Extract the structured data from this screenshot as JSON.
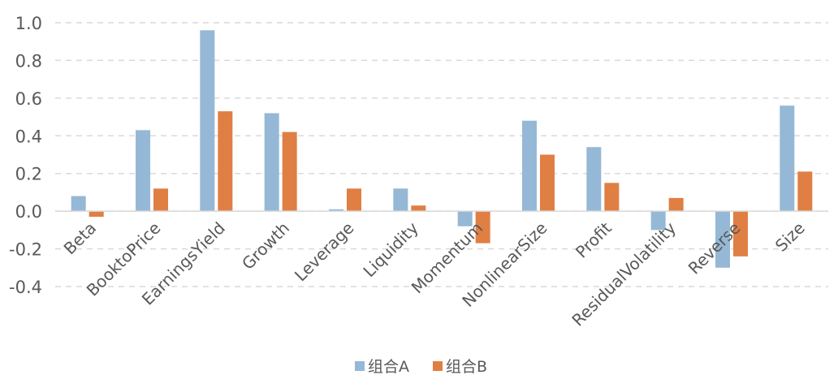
{
  "chart_data": {
    "type": "bar",
    "title": "",
    "xlabel": "",
    "ylabel": "",
    "categories": [
      "Beta",
      "BooktoPrice",
      "EarningsYield",
      "Growth",
      "Leverage",
      "Liquidity",
      "Momentum",
      "NonlinearSize",
      "Profit",
      "ResidualVolatility",
      "Reverse",
      "Size"
    ],
    "series": [
      {
        "name": "组合A",
        "color": "#95b8d6",
        "values": [
          0.08,
          0.43,
          0.96,
          0.52,
          0.01,
          0.12,
          -0.08,
          0.48,
          0.34,
          -0.1,
          -0.3,
          0.56
        ]
      },
      {
        "name": "组合B",
        "color": "#e07f44",
        "values": [
          -0.03,
          0.12,
          0.53,
          0.42,
          0.12,
          0.03,
          -0.17,
          0.3,
          0.15,
          0.07,
          -0.24,
          0.21
        ]
      }
    ],
    "ylim": [
      -0.4,
      1.0
    ],
    "yticks": [
      "-0.4",
      "-0.2",
      "0.0",
      "0.2",
      "0.4",
      "0.6",
      "0.8",
      "1.0"
    ],
    "grid": true,
    "legend_position": "bottom-center"
  }
}
